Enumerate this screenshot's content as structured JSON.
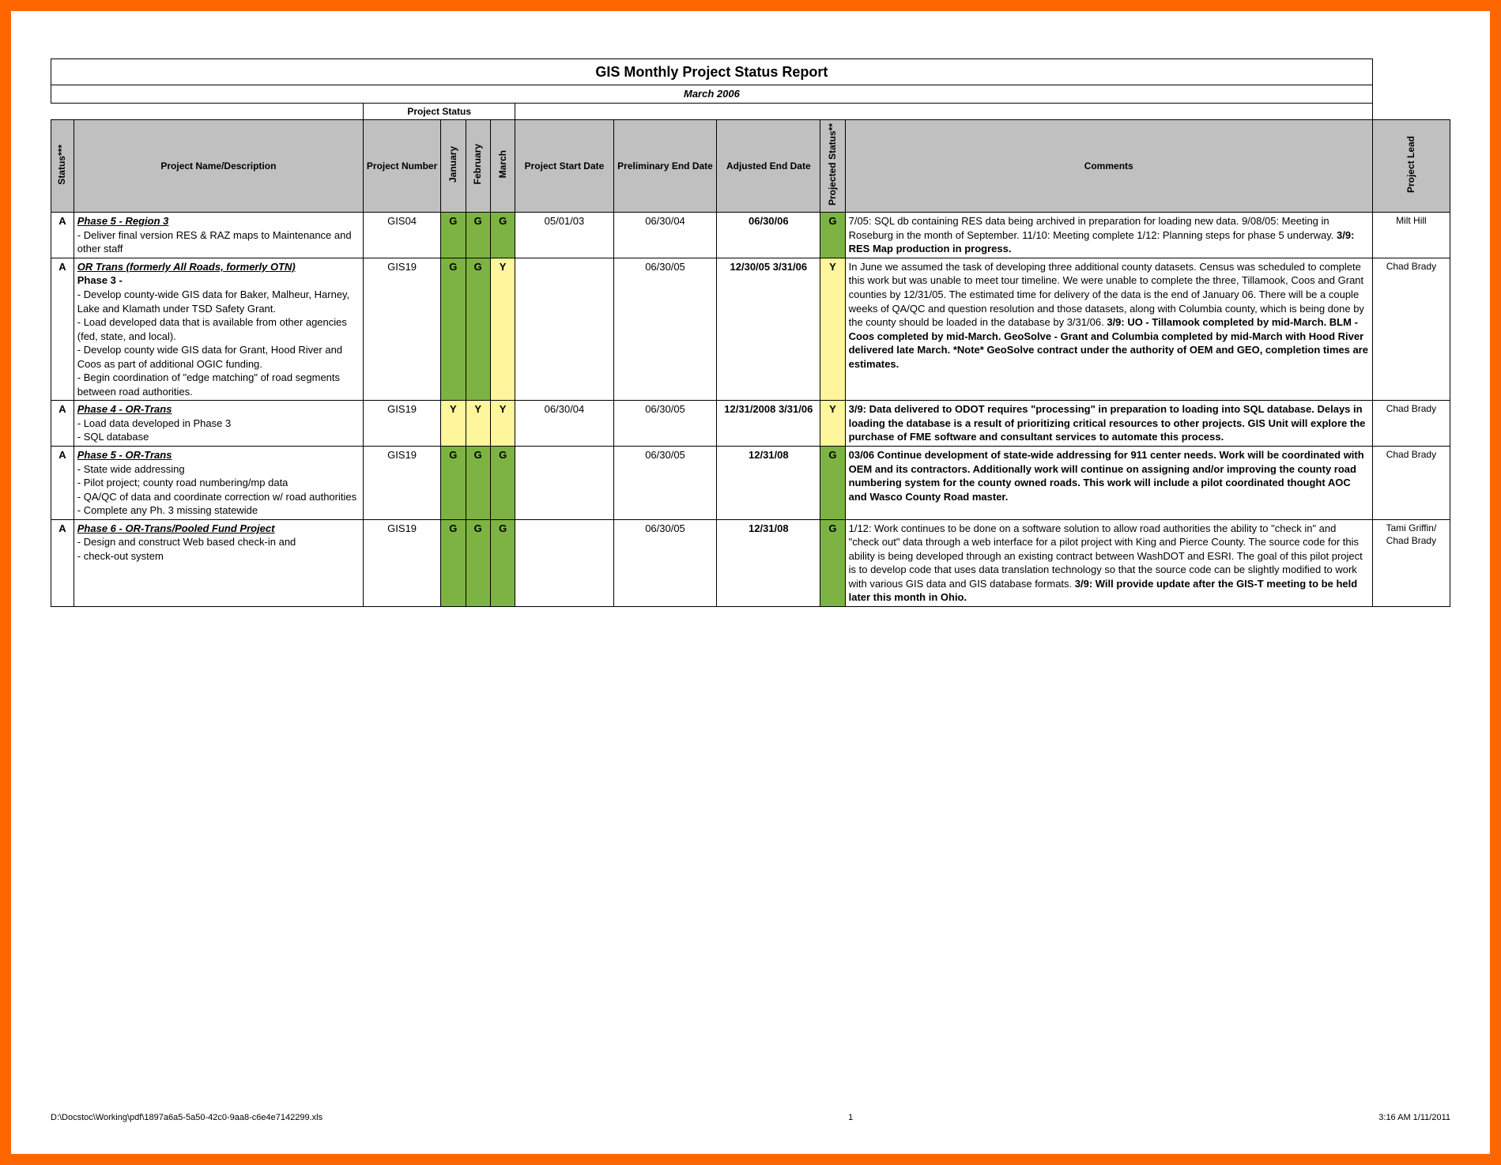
{
  "report": {
    "title": "GIS Monthly Project Status Report",
    "subtitle": "March 2006",
    "project_status_label": "Project Status"
  },
  "headers": {
    "status": "Status***",
    "name": "Project Name/Description",
    "number": "Project Number",
    "jan": "January",
    "feb": "February",
    "mar": "March",
    "start": "Project Start Date",
    "prelim": "Preliminary End Date",
    "adjusted": "Adjusted End Date",
    "projected": "Projected Status**",
    "comments": "Comments",
    "lead": "Project Lead"
  },
  "colors": {
    "frame": "#ff6600",
    "header_bg": "#c0c0c0",
    "green": "#7cb342",
    "yellow": "#fff59d"
  },
  "rows": [
    {
      "status": "A",
      "name_title": "Phase 5 - Region 3",
      "name_body": "  - Deliver final version RES & RAZ maps to Maintenance and other staff",
      "number": "GIS04",
      "jan": "G",
      "feb": "G",
      "mar": "G",
      "start": "05/01/03",
      "prelim": "06/30/04",
      "adjusted": "06/30/06",
      "projected": "G",
      "comments_plain": "7/05: SQL db containing RES data being archived in preparation for loading new data.  9/08/05:  Meeting in Roseburg in the month of September.   11/10: Meeting complete 1/12: Planning steps for phase 5 underway.  ",
      "comments_bold": "3/9:  RES Map production in progress.",
      "lead": "Milt Hill"
    },
    {
      "status": "A",
      "name_title": "OR Trans (formerly All Roads, formerly OTN)",
      "name_phase": "Phase 3 -",
      "name_body": "- Develop county-wide GIS data for Baker, Malheur, Harney, Lake and Klamath under TSD Safety Grant.\n-  Load developed data that is available from other agencies (fed, state, and local).\n -  Develop county wide GIS data for Grant, Hood River and Coos as part of additional OGIC funding.\n-  Begin coordination of \"edge matching\" of road segments between road authorities.",
      "number": "GIS19",
      "jan": "G",
      "feb": "G",
      "mar": "Y",
      "start": "",
      "prelim": "06/30/05",
      "adjusted": "12/30/05 3/31/06",
      "projected": "Y",
      "comments_plain": "In June we assumed the task of developing three additional  county datasets. Census was scheduled to complete this work but was unable to meet tour timeline. We were unable to complete the three, Tillamook, Coos and Grant counties by 12/31/05. The estimated time for delivery of the data is the end of January 06. There will be a couple weeks of QA/QC and question resolution and those datasets, along with Columbia county, which is being done by the county should be loaded in the database by 3/31/06. ",
      "comments_bold": "3/9: UO - Tillamook completed by mid-March. BLM - Coos completed by mid-March. GeoSolve - Grant and Columbia completed by mid-March with Hood River delivered late March. *Note* GeoSolve contract under the authority of OEM and GEO, completion times are estimates.",
      "lead": "Chad Brady"
    },
    {
      "status": "A",
      "name_title": "Phase 4 - OR-Trans",
      "name_body": "  - Load data developed in Phase 3\n  - SQL database",
      "number": "GIS19",
      "jan": "Y",
      "feb": "Y",
      "mar": "Y",
      "start": "06/30/04",
      "prelim": "06/30/05",
      "adjusted": "12/31/2008 3/31/06",
      "projected": "Y",
      "comments_plain": "",
      "comments_bold": "3/9: Data delivered to ODOT requires \"processing\" in preparation to loading into SQL database. Delays in loading the database is a result of prioritizing critical resources to other projects. GIS Unit will explore the purchase of FME software and consultant services to automate this process.",
      "lead": "Chad Brady"
    },
    {
      "status": "A",
      "name_title": " Phase 5 - OR-Trans",
      "name_body": "  - State wide addressing\n  - Pilot project; county road numbering/mp data\n  - QA/QC of data and coordinate correction w/ road authorities\n  - Complete any Ph. 3 missing statewide",
      "number": "GIS19",
      "jan": "G",
      "feb": "G",
      "mar": "G",
      "start": "",
      "prelim": "06/30/05",
      "adjusted": "12/31/08",
      "projected": "G",
      "comments_plain": "",
      "comments_bold": "03/06 Continue development of state-wide addressing for 911 center needs.  Work will be coordinated with OEM and its contractors.   Additionally work will continue on assigning and/or improving the county road numbering system for the county owned roads.  This work will include a pilot coordinated thought AOC and Wasco County Road master.",
      "lead": "Chad Brady"
    },
    {
      "status": "A",
      "name_title": "Phase 6 - OR-Trans/Pooled Fund Project",
      "name_body": "  - Design and construct Web based check-in and\n  - check-out system",
      "number": "GIS19",
      "jan": "G",
      "feb": "G",
      "mar": "G",
      "start": "",
      "prelim": "06/30/05",
      "adjusted": "12/31/08",
      "projected": "G",
      "comments_plain": "1/12: Work continues to be done on a software solution to allow road authorities the ability to \"check in\" and \"check out\" data through a web interface for a pilot project with King and Pierce County. The source code for this ability is being developed through an existing contract between WashDOT and ESRI. The goal of this pilot project is to develop code that uses data translation technology so that the source code can be slightly modified to work with various GIS data and GIS database formats.  ",
      "comments_bold": "3/9: Will provide update after the GIS-T meeting to be held later this month in Ohio.",
      "lead": "Tami Griffin/ Chad Brady"
    }
  ],
  "footer": {
    "path": "D:\\Docstoc\\Working\\pdf\\1897a6a5-5a50-42c0-9aa8-c6e4e7142299.xls",
    "page": "1",
    "time": "3:16 AM   1/11/2011"
  }
}
